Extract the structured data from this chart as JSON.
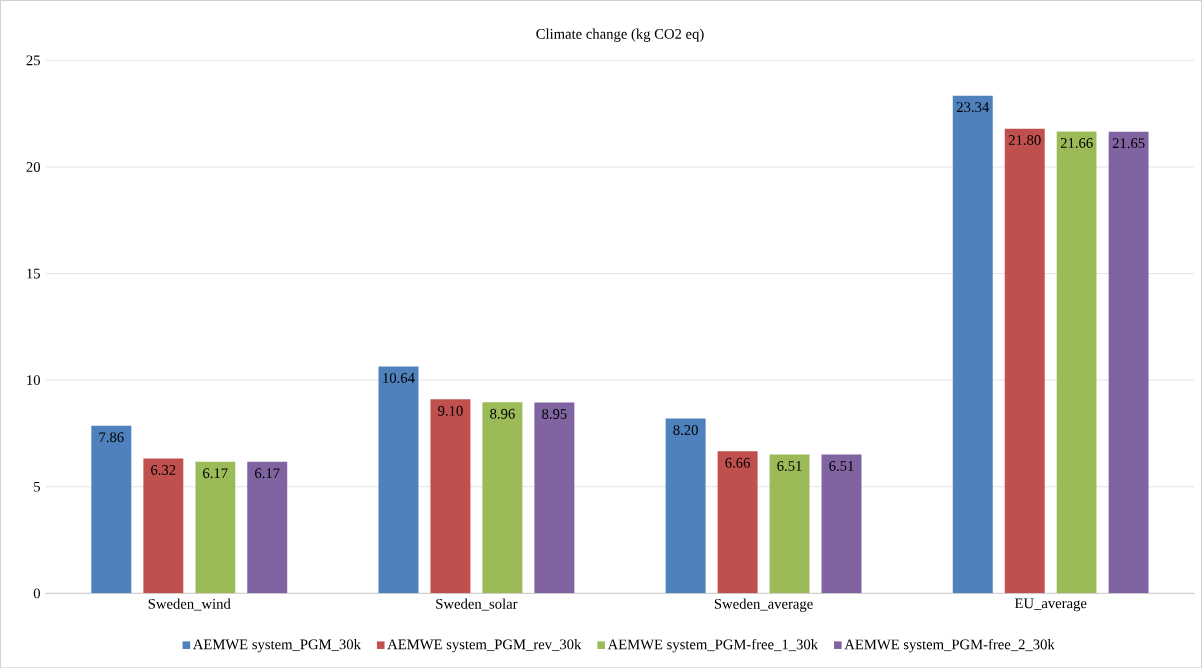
{
  "chart_data": {
    "type": "bar",
    "title": "Climate change (kg CO2 eq)",
    "categories": [
      "Sweden_wind",
      "Sweden_solar",
      "Sweden_average",
      "EU_average"
    ],
    "series": [
      {
        "name": "AEMWE system_PGM_30k",
        "color": "#4f81bd",
        "values": [
          7.86,
          10.64,
          8.2,
          23.34
        ],
        "value_labels": [
          "7.86",
          "10.64",
          "8.20",
          "23.34"
        ]
      },
      {
        "name": "AEMWE system_PGM_rev_30k",
        "color": "#c0504d",
        "values": [
          6.32,
          9.1,
          6.66,
          21.8
        ],
        "value_labels": [
          "6.32",
          "9.10",
          "6.66",
          "21.80"
        ]
      },
      {
        "name": "AEMWE system_PGM-free_1_30k",
        "color": "#9bbb59",
        "values": [
          6.17,
          8.96,
          6.51,
          21.66
        ],
        "value_labels": [
          "6.17",
          "8.96",
          "6.51",
          "21.66"
        ]
      },
      {
        "name": "AEMWE system_PGM-free_2_30k",
        "color": "#8064a2",
        "values": [
          6.17,
          8.95,
          6.51,
          21.65
        ],
        "value_labels": [
          "6.17",
          "8.95",
          "6.51",
          "21.65"
        ]
      }
    ],
    "ylim": [
      0,
      25
    ],
    "yticks": [
      0,
      5,
      10,
      15,
      20,
      25
    ],
    "grid": "y",
    "legend": "bottom"
  }
}
